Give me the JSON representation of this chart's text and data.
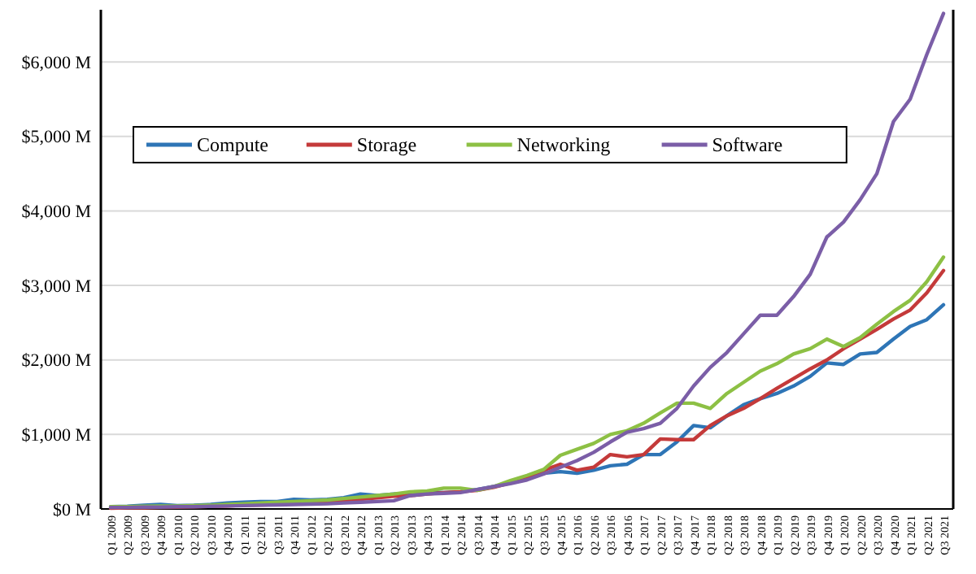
{
  "chart_data": {
    "type": "line",
    "categories": [
      "Q1 2009",
      "Q2 2009",
      "Q3 2009",
      "Q4 2009",
      "Q1 2010",
      "Q2 2010",
      "Q3 2010",
      "Q4 2010",
      "Q1 2011",
      "Q2 2011",
      "Q3 2011",
      "Q4 2011",
      "Q1 2012",
      "Q2 2012",
      "Q3 2012",
      "Q4 2012",
      "Q1 2013",
      "Q2 2013",
      "Q3 2013",
      "Q4 2013",
      "Q1 2014",
      "Q2 2014",
      "Q3 2014",
      "Q4 2014",
      "Q1 2015",
      "Q2 2015",
      "Q3 2015",
      "Q4 2015",
      "Q1 2016",
      "Q2 2016",
      "Q3 2016",
      "Q4 2016",
      "Q1 2017",
      "Q2 2017",
      "Q3 2017",
      "Q4 2017",
      "Q1 2018",
      "Q2 2018",
      "Q3 2018",
      "Q4 2018",
      "Q1 2019",
      "Q2 2019",
      "Q3 2019",
      "Q4 2019",
      "Q1 2020",
      "Q2 2020",
      "Q3 2020",
      "Q4 2020",
      "Q1 2021",
      "Q2 2021",
      "Q3 2021"
    ],
    "series": [
      {
        "name": "Compute",
        "color": "#2e75b6",
        "values": [
          30,
          35,
          50,
          60,
          45,
          50,
          60,
          80,
          90,
          100,
          100,
          130,
          120,
          130,
          150,
          200,
          180,
          200,
          210,
          230,
          220,
          230,
          260,
          300,
          350,
          420,
          480,
          500,
          480,
          520,
          580,
          600,
          730,
          730,
          900,
          1120,
          1090,
          1250,
          1400,
          1480,
          1550,
          1650,
          1780,
          1960,
          1940,
          2080,
          2100,
          2280,
          2450,
          2540,
          2740
        ]
      },
      {
        "name": "Storage",
        "color": "#c43a3a",
        "values": [
          10,
          15,
          15,
          20,
          25,
          30,
          35,
          40,
          50,
          55,
          60,
          70,
          80,
          100,
          120,
          130,
          150,
          170,
          180,
          200,
          220,
          230,
          250,
          290,
          350,
          420,
          520,
          600,
          520,
          560,
          730,
          700,
          730,
          940,
          930,
          930,
          1120,
          1250,
          1350,
          1480,
          1620,
          1750,
          1880,
          2000,
          2150,
          2280,
          2410,
          2550,
          2670,
          2900,
          3200
        ]
      },
      {
        "name": "Networking",
        "color": "#8dc044",
        "values": [
          30,
          30,
          35,
          40,
          40,
          45,
          50,
          60,
          70,
          80,
          90,
          100,
          110,
          120,
          140,
          160,
          180,
          200,
          230,
          240,
          280,
          280,
          250,
          300,
          380,
          450,
          530,
          720,
          800,
          880,
          1000,
          1050,
          1150,
          1290,
          1420,
          1420,
          1350,
          1550,
          1700,
          1850,
          1950,
          2080,
          2150,
          2280,
          2180,
          2300,
          2480,
          2650,
          2800,
          3050,
          3380
        ]
      },
      {
        "name": "Software",
        "color": "#7b5ea7",
        "values": [
          20,
          20,
          25,
          25,
          30,
          30,
          35,
          40,
          45,
          50,
          55,
          60,
          65,
          70,
          80,
          90,
          100,
          110,
          180,
          200,
          210,
          220,
          260,
          300,
          340,
          390,
          470,
          560,
          650,
          760,
          900,
          1030,
          1080,
          1150,
          1350,
          1650,
          1900,
          2100,
          2350,
          2600,
          2600,
          2850,
          3150,
          3650,
          3850,
          4150,
          4500,
          5200,
          5500,
          6100,
          6650
        ]
      }
    ],
    "ylim": [
      0,
      6700
    ],
    "yticks": [
      {
        "value": 0,
        "label": "$0 M"
      },
      {
        "value": 1000,
        "label": "$1,000 M"
      },
      {
        "value": 2000,
        "label": "$2,000 M"
      },
      {
        "value": 3000,
        "label": "$3,000 M"
      },
      {
        "value": 4000,
        "label": "$4,000 M"
      },
      {
        "value": 5000,
        "label": "$5,000 M"
      },
      {
        "value": 6000,
        "label": "$6,000 M"
      }
    ],
    "grid": "y",
    "legend": "top left"
  }
}
